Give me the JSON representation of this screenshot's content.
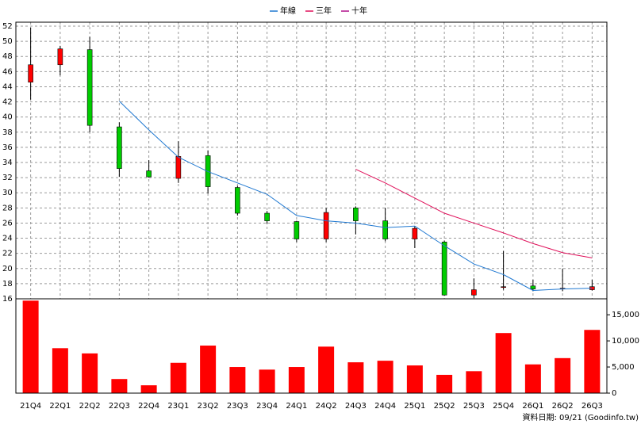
{
  "chart_data": [
    {
      "type": "candlestick",
      "categories": [
        "21Q4",
        "22Q1",
        "22Q2",
        "22Q3",
        "22Q4",
        "23Q1",
        "23Q2",
        "23Q3",
        "23Q4",
        "24Q1",
        "24Q2",
        "24Q3",
        "24Q4",
        "25Q1",
        "25Q2",
        "25Q3",
        "25Q4",
        "26Q1",
        "26Q2",
        "26Q3"
      ],
      "open": [
        44.6,
        46.9,
        48.9,
        38.7,
        32.9,
        31.9,
        34.9,
        30.7,
        27.3,
        26.2,
        23.9,
        28.0,
        26.3,
        23.9,
        23.5,
        16.5,
        17.5,
        17.7,
        17.3,
        17.2
      ],
      "high": [
        51.8,
        49.4,
        50.6,
        39.3,
        34.3,
        36.8,
        35.6,
        30.9,
        27.6,
        26.3,
        28.0,
        28.2,
        28.0,
        25.6,
        23.7,
        18.7,
        22.3,
        18.5,
        20.0,
        18.5
      ],
      "low": [
        42.3,
        45.5,
        38.0,
        32.1,
        32.0,
        31.3,
        29.9,
        27.0,
        25.9,
        23.5,
        23.5,
        24.5,
        23.6,
        22.7,
        16.4,
        16.1,
        17.2,
        17.0,
        17.0,
        17.1
      ],
      "close": [
        46.9,
        49.0,
        38.9,
        33.2,
        32.1,
        34.8,
        30.8,
        27.3,
        26.3,
        23.9,
        27.4,
        26.3,
        23.9,
        25.3,
        16.5,
        17.2,
        17.6,
        17.3,
        17.4,
        17.6
      ],
      "up_color": "#ff0000",
      "down_color": "#00cc00",
      "series": [
        {
          "name": "年線",
          "color": "#1f78d1",
          "values": [
            null,
            null,
            null,
            42.1,
            38.3,
            34.7,
            32.8,
            31.3,
            29.8,
            27.0,
            26.3,
            26.0,
            25.4,
            25.6,
            23.0,
            20.6,
            19.2,
            17.1,
            17.3,
            17.4
          ]
        },
        {
          "name": "三年",
          "color": "#e0105a",
          "values": [
            null,
            null,
            null,
            null,
            null,
            null,
            null,
            null,
            null,
            null,
            null,
            33.1,
            31.3,
            29.3,
            27.3,
            26.0,
            24.7,
            23.3,
            22.1,
            21.4
          ]
        },
        {
          "name": "十年",
          "color": "#b0108a",
          "values": [
            null,
            null,
            null,
            null,
            null,
            null,
            null,
            null,
            null,
            null,
            null,
            null,
            null,
            null,
            null,
            null,
            null,
            null,
            null,
            null
          ]
        }
      ],
      "ylim": [
        16,
        52
      ],
      "yticks": [
        16,
        18,
        20,
        22,
        24,
        26,
        28,
        30,
        32,
        34,
        36,
        38,
        40,
        42,
        44,
        46,
        48,
        50,
        52
      ],
      "grid": true
    },
    {
      "type": "bar",
      "values": [
        17700,
        8600,
        7600,
        2700,
        1500,
        5800,
        9100,
        5000,
        4500,
        5000,
        8900,
        5900,
        6200,
        5300,
        3500,
        4200,
        11500,
        5500,
        6700,
        12100
      ],
      "color": "#ff0000",
      "ylim": [
        0,
        17900
      ],
      "yticks": [
        0,
        {
          "value": 5000,
          "label": "5,000"
        },
        {
          "value": 10000,
          "label": "10,000"
        },
        {
          "value": 15000,
          "label": "15,000"
        }
      ]
    }
  ],
  "source": "資料日期: 09/21 (Goodinfo.tw)"
}
